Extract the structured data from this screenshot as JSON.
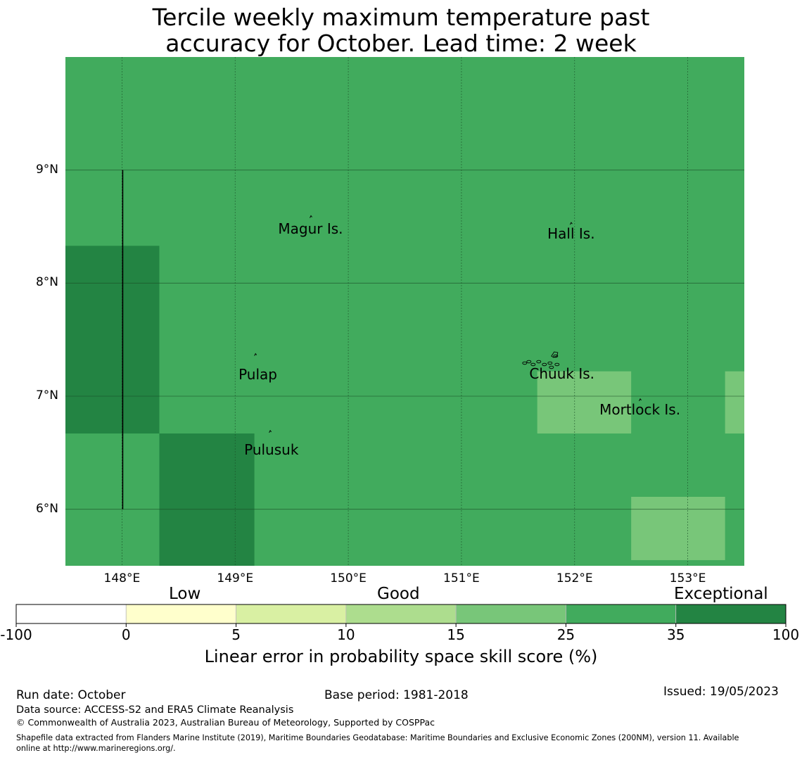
{
  "title_line1": "Tercile weekly maximum temperature past",
  "title_line2": "accuracy for October. Lead time: 2 week",
  "map": {
    "extent": {
      "lon_min": 147.5,
      "lon_max": 153.5,
      "lat_min": 5.5,
      "lat_max": 10.0
    },
    "background_color": "#41ab5d",
    "lat_ticks": [
      {
        "lat": 9,
        "label": "9°N"
      },
      {
        "lat": 8,
        "label": "8°N"
      },
      {
        "lat": 7,
        "label": "7°N"
      },
      {
        "lat": 6,
        "label": "6°N"
      }
    ],
    "lon_ticks": [
      {
        "lon": 148,
        "label": "148°E"
      },
      {
        "lon": 149,
        "label": "149°E"
      },
      {
        "lon": 150,
        "label": "150°E"
      },
      {
        "lon": 151,
        "label": "151°E"
      },
      {
        "lon": 152,
        "label": "152°E"
      },
      {
        "lon": 153,
        "label": "153°E"
      }
    ],
    "cells": [
      {
        "lon0": 147.5,
        "lon1": 148.33,
        "lat0": 6.67,
        "lat1": 8.33,
        "color": "#238443"
      },
      {
        "lon0": 148.33,
        "lon1": 149.17,
        "lat0": 5.5,
        "lat1": 6.67,
        "color": "#238443"
      },
      {
        "lon0": 151.67,
        "lon1": 152.5,
        "lat0": 6.67,
        "lat1": 7.22,
        "color": "#78c679"
      },
      {
        "lon0": 153.33,
        "lon1": 153.5,
        "lat0": 6.67,
        "lat1": 7.22,
        "color": "#78c679"
      },
      {
        "lon0": 152.5,
        "lon1": 153.33,
        "lat0": 5.55,
        "lat1": 6.11,
        "color": "#78c679"
      }
    ],
    "boundary_line": {
      "lon": 148.0,
      "lat0": 6.0,
      "lat1": 9.0
    },
    "islands": [
      {
        "name": "Magur Is.",
        "lon": 149.67,
        "lat": 8.59,
        "label_lon": 149.38,
        "label_lat": 8.48
      },
      {
        "name": "Hall Is.",
        "lon": 151.97,
        "lat": 8.53,
        "label_lon": 151.76,
        "label_lat": 8.44
      },
      {
        "name": "Pulap",
        "lon": 149.18,
        "lat": 7.37,
        "label_lon": 149.03,
        "label_lat": 7.19
      },
      {
        "name": "Chuuk Is.",
        "lon": 151.82,
        "lat": 7.38,
        "label_lon": 151.6,
        "label_lat": 7.2
      },
      {
        "name": "Mortlock Is.",
        "lon": 152.58,
        "lat": 6.97,
        "label_lon": 152.22,
        "label_lat": 6.88
      },
      {
        "name": "Pulusuk",
        "lon": 149.31,
        "lat": 6.69,
        "label_lon": 149.08,
        "label_lat": 6.53
      }
    ]
  },
  "colorbar": {
    "category_labels": [
      "Low",
      "Good",
      "Exceptional"
    ],
    "bins": [
      {
        "from": -100,
        "to": 0,
        "color": "#ffffff"
      },
      {
        "from": 0,
        "to": 5,
        "color": "#ffffcc"
      },
      {
        "from": 5,
        "to": 10,
        "color": "#d9f0a3"
      },
      {
        "from": 10,
        "to": 15,
        "color": "#addd8e"
      },
      {
        "from": 15,
        "to": 25,
        "color": "#78c679"
      },
      {
        "from": 25,
        "to": 35,
        "color": "#41ab5d"
      },
      {
        "from": 35,
        "to": 100,
        "color": "#238443"
      }
    ],
    "tick_labels": [
      "-100",
      "0",
      "5",
      "10",
      "15",
      "25",
      "35",
      "100"
    ],
    "title": "Linear error in probability space skill score (%)"
  },
  "footer": {
    "run_date": "Run date: October",
    "base_period": "Base period: 1981-2018",
    "issued": "Issued: 19/05/2023",
    "data_source": "Data source: ACCESS-S2 and ERA5 Climate Reanalysis",
    "copyright": "© Commonwealth of Australia 2023, Australian Bureau of Meteorology, Supported by COSPPac",
    "shapefile_line1": "Shapefile data extracted from Flanders Marine Institute (2019), Maritime Boundaries Geodatabase: Maritime Boundaries and Exclusive Economic Zones (200NM), version 11. Available",
    "shapefile_line2": "online at http://www.marineregions.org/."
  }
}
